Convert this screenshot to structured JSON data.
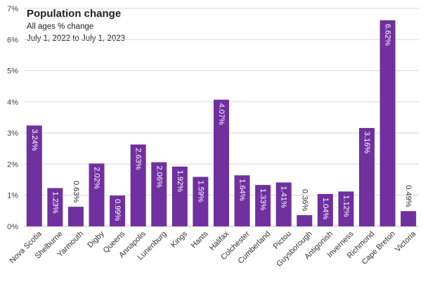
{
  "chart_data": {
    "type": "bar",
    "title": "Population change",
    "subtitle_lines": [
      "All ages % change",
      "July 1, 2022 to July 1, 2023"
    ],
    "categories": [
      "Nova Scotia",
      "Shelburne",
      "Yarmouth",
      "Digby",
      "Queens",
      "Annapolis",
      "Lunenburg",
      "Kings",
      "Hants",
      "Halifax",
      "Colchester",
      "Cumberland",
      "Pictou",
      "Guysborough",
      "Antigonish",
      "Inverness",
      "Richmond",
      "Cape Breton",
      "Victoria"
    ],
    "values": [
      3.24,
      1.23,
      0.63,
      2.02,
      0.99,
      2.63,
      2.06,
      1.92,
      1.59,
      4.07,
      1.64,
      1.33,
      1.41,
      0.36,
      1.04,
      1.12,
      3.16,
      6.62,
      0.49
    ],
    "data_labels": [
      "3.24%",
      "1.23%",
      "0.63%",
      "2.02%",
      "0.99%",
      "2.63%",
      "2.06%",
      "1.92%",
      "1.59%",
      "4.07%",
      "1.64%",
      "1.33%",
      "1.41%",
      "0.36%",
      "1.04%",
      "1.12%",
      "3.16%",
      "6.62%",
      "0.49%"
    ],
    "y_tick_labels": [
      "0%",
      "1%",
      "2%",
      "3%",
      "4%",
      "5%",
      "6%",
      "7%"
    ],
    "ylim": [
      0,
      7
    ],
    "grid": true,
    "bar_color": "#7030a0",
    "xlabel": "",
    "ylabel": ""
  }
}
